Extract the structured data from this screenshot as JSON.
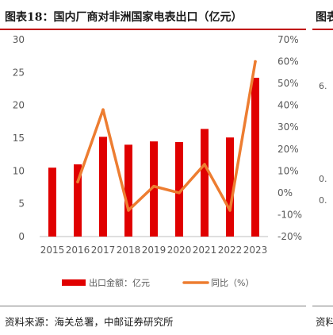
{
  "header": {
    "title": "图表18：国内厂商对非洲国家电表出口（亿元）",
    "next_title_fragment": "图表"
  },
  "footer": {
    "source": "资料来源：海关总署，中邮证券研究所",
    "next_source_fragment": "资料"
  },
  "side_fragments": [
    "6.",
    "0.",
    "0."
  ],
  "colors": {
    "bar": "#e00000",
    "line": "#ed7d31",
    "accent_rule": "#c00000"
  },
  "chart_data": {
    "type": "bar",
    "categories": [
      "2015",
      "2016",
      "2017",
      "2018",
      "2019",
      "2020",
      "2021",
      "2022",
      "2023"
    ],
    "series": [
      {
        "name": "出口金额：亿元",
        "type": "bar",
        "axis": "left",
        "values": [
          10.5,
          11.0,
          15.2,
          14.0,
          14.5,
          14.4,
          16.4,
          15.1,
          24.2
        ]
      },
      {
        "name": "同比（%）",
        "type": "line",
        "axis": "right",
        "values": [
          null,
          5,
          38,
          -8,
          3,
          0,
          13,
          -8,
          60
        ]
      }
    ],
    "ylim": [
      0,
      30
    ],
    "yticks": [
      0,
      5,
      10,
      15,
      20,
      25,
      30
    ],
    "y2lim": [
      -20,
      70
    ],
    "y2ticks": [
      "-20%",
      "-10%",
      "0%",
      "10%",
      "20%",
      "30%",
      "40%",
      "50%",
      "60%",
      "70%"
    ],
    "y2tick_values": [
      -20,
      -10,
      0,
      10,
      20,
      30,
      40,
      50,
      60,
      70
    ],
    "legend_position": "bottom",
    "grid": false
  }
}
